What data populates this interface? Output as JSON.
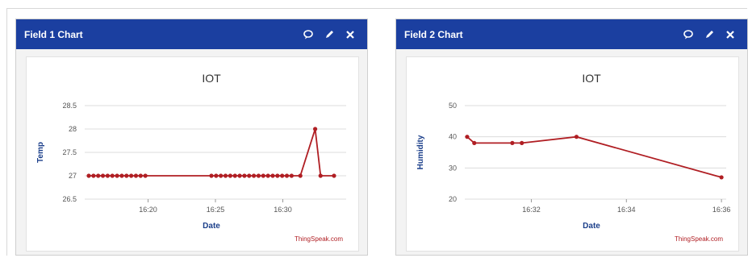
{
  "widgets": [
    {
      "title": "Field 1 Chart",
      "icons": [
        "comment-icon",
        "edit-icon",
        "close-icon"
      ]
    },
    {
      "title": "Field 2 Chart",
      "icons": [
        "comment-icon",
        "edit-icon",
        "close-icon"
      ]
    }
  ],
  "chart_data": [
    {
      "type": "line",
      "title": "IOT",
      "xlabel": "Date",
      "ylabel": "Temp",
      "credit": "ThingSpeak.com",
      "color": "#b01e23",
      "x_unit": "minutes_since_midnight",
      "xlim": [
        975.3,
        994.7
      ],
      "ylim": [
        26.5,
        28.5
      ],
      "yticks": [
        26.5,
        27,
        27.5,
        28,
        28.5
      ],
      "ytick_labels": [
        "26.5",
        "27",
        "27.5",
        "28",
        "28.5"
      ],
      "xticks": [
        980,
        985,
        990
      ],
      "xtick_labels": [
        "16:20",
        "16:25",
        "16:30"
      ],
      "grid": true,
      "series": [
        {
          "x": [
            975.6,
            975.95,
            976.3,
            976.65,
            977.0,
            977.35,
            977.7,
            978.05,
            978.4,
            978.75,
            979.1,
            979.45,
            979.8,
            984.7,
            985.05,
            985.4,
            985.75,
            986.1,
            986.45,
            986.8,
            987.15,
            987.5,
            987.85,
            988.2,
            988.55,
            988.9,
            989.25,
            989.6,
            989.95,
            990.3,
            990.65,
            991.3,
            992.4,
            992.8,
            993.8
          ],
          "y": [
            27,
            27,
            27,
            27,
            27,
            27,
            27,
            27,
            27,
            27,
            27,
            27,
            27,
            27,
            27,
            27,
            27,
            27,
            27,
            27,
            27,
            27,
            27,
            27,
            27,
            27,
            27,
            27,
            27,
            27,
            27,
            27,
            28,
            27,
            27
          ]
        }
      ]
    },
    {
      "type": "line",
      "title": "IOT",
      "xlabel": "Date",
      "ylabel": "Humidity",
      "credit": "ThingSpeak.com",
      "color": "#b01e23",
      "x_unit": "minutes_since_midnight",
      "xlim": [
        990.6,
        996.1
      ],
      "ylim": [
        20,
        50
      ],
      "yticks": [
        20,
        30,
        40,
        50
      ],
      "ytick_labels": [
        "20",
        "30",
        "40",
        "50"
      ],
      "xticks": [
        992,
        994,
        996
      ],
      "xtick_labels": [
        "16:32",
        "16:34",
        "16:36"
      ],
      "grid": true,
      "series": [
        {
          "x": [
            990.65,
            990.8,
            991.6,
            991.8,
            992.95,
            996.0
          ],
          "y": [
            40,
            38,
            38,
            38,
            40,
            27
          ]
        }
      ]
    }
  ]
}
